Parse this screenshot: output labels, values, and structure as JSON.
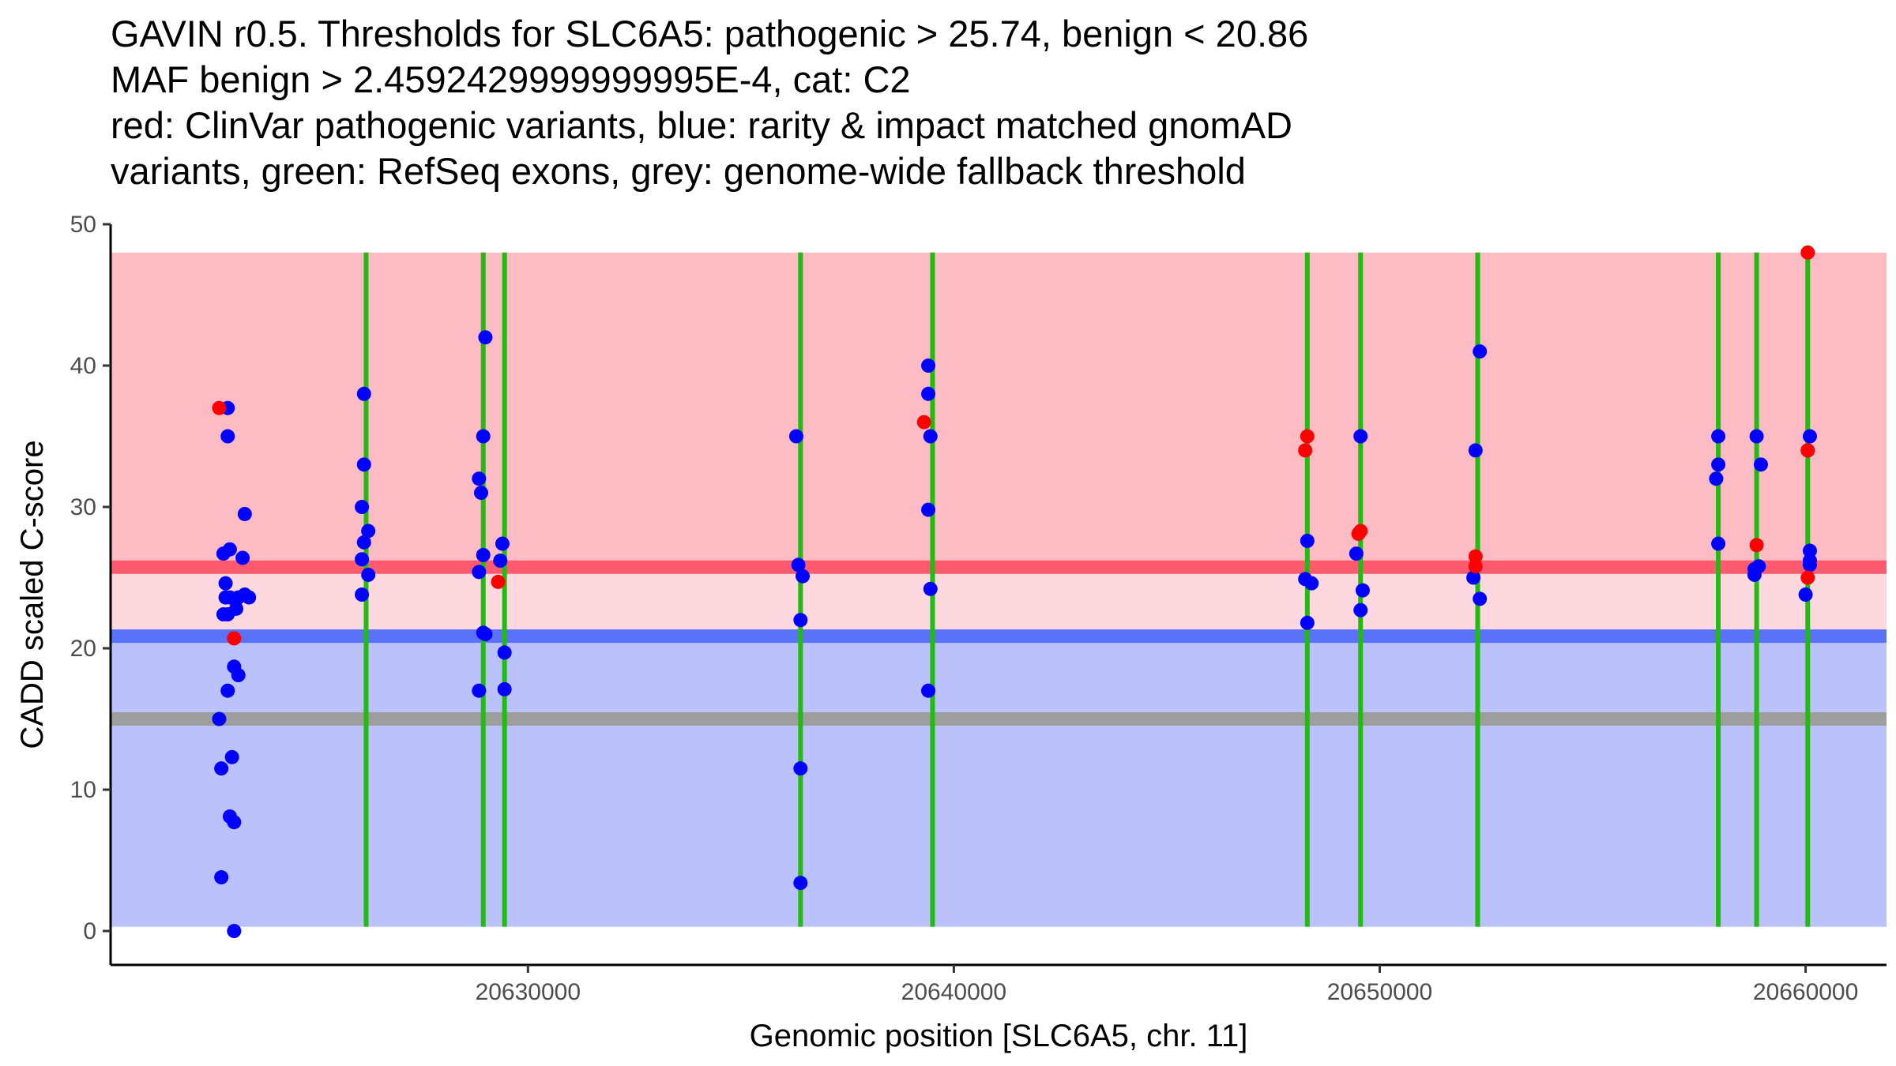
{
  "chart_data": {
    "type": "scatter",
    "title_lines": [
      "GAVIN r0.5. Thresholds for SLC6A5: pathogenic > 25.74, benign < 20.86",
      "MAF benign > 2.4592429999999995E-4, cat: C2",
      "red: ClinVar pathogenic variants, blue: rarity & impact matched gnomAD",
      "variants, green: RefSeq exons, grey: genome-wide fallback threshold"
    ],
    "xlabel": "Genomic position [SLC6A5, chr. 11]",
    "ylabel": "CADD scaled C-score",
    "xlim": [
      20620200,
      20661900
    ],
    "ylim": [
      -2.4,
      50
    ],
    "x_ticks": [
      20630000,
      20640000,
      20650000,
      20660000
    ],
    "x_tick_labels": [
      "20630000",
      "20640000",
      "20650000",
      "20660000"
    ],
    "y_ticks": [
      0,
      10,
      20,
      30,
      40,
      50
    ],
    "y_tick_labels": [
      "0",
      "10",
      "20",
      "30",
      "40",
      "50"
    ],
    "thresholds": {
      "pathogenic": 25.74,
      "benign": 20.86,
      "fallback": 15
    },
    "bands": [
      {
        "name": "pathogenic-region",
        "y0": 25.74,
        "y1": 48,
        "color": "#fdbbc4"
      },
      {
        "name": "intermediate-region",
        "y0": 20.86,
        "y1": 25.74,
        "color": "#fdd8de"
      },
      {
        "name": "benign-region",
        "y0": 0.3,
        "y1": 20.86,
        "color": "#bbc1fa"
      }
    ],
    "lines": [
      {
        "name": "pathogenic-threshold-line",
        "y": 25.74,
        "color": "#ff5a6e"
      },
      {
        "name": "benign-threshold-line",
        "y": 20.86,
        "color": "#5a72f8"
      },
      {
        "name": "fallback-threshold-line",
        "y": 15,
        "color": "#9e9e9e"
      }
    ],
    "exon_color": "#22bb11",
    "exons": [
      20626200,
      20628950,
      20629450,
      20636400,
      20639500,
      20648300,
      20649550,
      20652300,
      20657950,
      20658850,
      20660050
    ],
    "series": [
      {
        "name": "ClinVar pathogenic variants",
        "color": "#ff0000",
        "points": [
          [
            20622750,
            37
          ],
          [
            20623100,
            20.7
          ],
          [
            20629300,
            24.7
          ],
          [
            20639300,
            36
          ],
          [
            20648300,
            35
          ],
          [
            20648250,
            34
          ],
          [
            20649550,
            28.3
          ],
          [
            20649500,
            28.1
          ],
          [
            20652250,
            26.5
          ],
          [
            20652250,
            25.8
          ],
          [
            20658850,
            27.3
          ],
          [
            20660050,
            48
          ],
          [
            20660050,
            34
          ],
          [
            20660050,
            25
          ]
        ]
      },
      {
        "name": "rarity & impact matched gnomAD variants",
        "color": "#0000ff",
        "points": [
          [
            20622950,
            37
          ],
          [
            20622950,
            35
          ],
          [
            20623000,
            27
          ],
          [
            20622850,
            26.7
          ],
          [
            20623350,
            29.5
          ],
          [
            20623300,
            26.4
          ],
          [
            20622900,
            24.6
          ],
          [
            20622900,
            23.6
          ],
          [
            20623000,
            23.6
          ],
          [
            20623200,
            23.6
          ],
          [
            20623350,
            23.8
          ],
          [
            20623450,
            23.6
          ],
          [
            20623150,
            22.8
          ],
          [
            20622850,
            22.4
          ],
          [
            20622950,
            22.4
          ],
          [
            20623100,
            18.7
          ],
          [
            20623200,
            18.1
          ],
          [
            20622950,
            17
          ],
          [
            20622750,
            15
          ],
          [
            20623050,
            12.3
          ],
          [
            20622800,
            11.5
          ],
          [
            20623000,
            8.1
          ],
          [
            20623100,
            7.7
          ],
          [
            20622800,
            3.8
          ],
          [
            20623100,
            0
          ],
          [
            20626150,
            38
          ],
          [
            20626150,
            33
          ],
          [
            20626100,
            30
          ],
          [
            20626250,
            28.3
          ],
          [
            20626150,
            27.5
          ],
          [
            20626100,
            26.3
          ],
          [
            20626250,
            25.2
          ],
          [
            20626100,
            23.8
          ],
          [
            20629000,
            42
          ],
          [
            20628950,
            35
          ],
          [
            20628850,
            32
          ],
          [
            20628900,
            31
          ],
          [
            20628950,
            26.6
          ],
          [
            20628850,
            25.4
          ],
          [
            20628950,
            21.1
          ],
          [
            20629000,
            21
          ],
          [
            20628850,
            17
          ],
          [
            20629400,
            27.4
          ],
          [
            20629350,
            26.2
          ],
          [
            20629450,
            19.7
          ],
          [
            20629450,
            17.1
          ],
          [
            20636300,
            35
          ],
          [
            20636350,
            25.9
          ],
          [
            20636450,
            25.1
          ],
          [
            20636400,
            22
          ],
          [
            20636400,
            11.5
          ],
          [
            20636400,
            3.4
          ],
          [
            20639400,
            40
          ],
          [
            20639400,
            38
          ],
          [
            20639450,
            35
          ],
          [
            20639400,
            29.8
          ],
          [
            20639450,
            24.2
          ],
          [
            20639400,
            17
          ],
          [
            20648300,
            27.6
          ],
          [
            20648250,
            24.9
          ],
          [
            20648400,
            24.6
          ],
          [
            20648300,
            21.8
          ],
          [
            20649550,
            35
          ],
          [
            20649450,
            26.7
          ],
          [
            20649600,
            24.1
          ],
          [
            20649550,
            22.7
          ],
          [
            20652350,
            41
          ],
          [
            20652250,
            34
          ],
          [
            20652200,
            25
          ],
          [
            20652350,
            23.5
          ],
          [
            20657950,
            35
          ],
          [
            20657950,
            33
          ],
          [
            20657900,
            32
          ],
          [
            20657950,
            27.4
          ],
          [
            20658850,
            35
          ],
          [
            20658950,
            33
          ],
          [
            20658900,
            25.8
          ],
          [
            20658800,
            25.6
          ],
          [
            20658800,
            25.2
          ],
          [
            20660100,
            35
          ],
          [
            20660050,
            34
          ],
          [
            20660100,
            26.9
          ],
          [
            20660100,
            26.2
          ],
          [
            20660100,
            25.9
          ],
          [
            20660000,
            23.8
          ]
        ]
      }
    ]
  }
}
